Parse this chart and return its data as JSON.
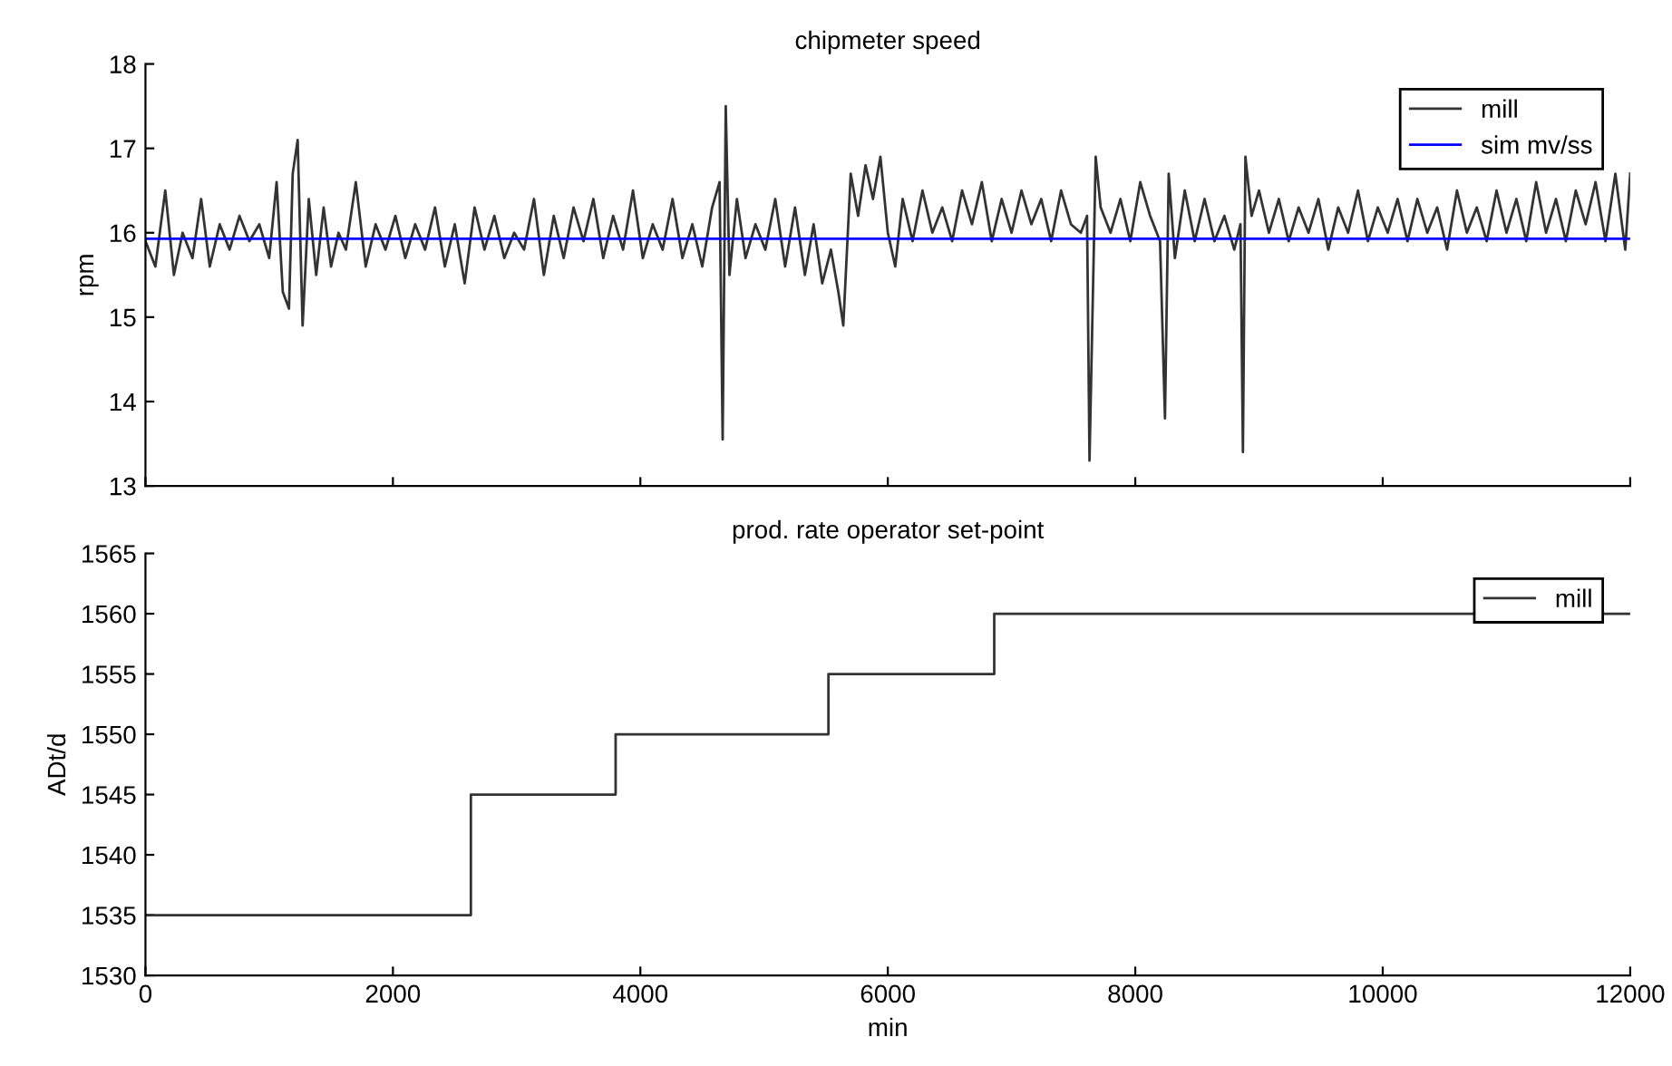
{
  "chart_data": [
    {
      "type": "line",
      "title": "chipmeter speed",
      "ylabel": "rpm",
      "xlim": [
        0,
        12000
      ],
      "ylim": [
        13,
        18
      ],
      "xticks": [
        0,
        2000,
        4000,
        6000,
        8000,
        10000,
        12000
      ],
      "yticks": [
        13,
        14,
        15,
        16,
        17,
        18
      ],
      "tick_labels": "y",
      "legend": "top right",
      "grid": false,
      "series": [
        {
          "name": "mill",
          "color": "#333333",
          "x": [
            0,
            80,
            160,
            230,
            300,
            380,
            450,
            520,
            600,
            680,
            760,
            840,
            920,
            1000,
            1060,
            1110,
            1160,
            1190,
            1230,
            1270,
            1320,
            1380,
            1440,
            1500,
            1560,
            1620,
            1700,
            1780,
            1860,
            1940,
            2020,
            2100,
            2180,
            2260,
            2340,
            2420,
            2500,
            2580,
            2660,
            2740,
            2820,
            2900,
            2980,
            3060,
            3140,
            3220,
            3300,
            3380,
            3460,
            3540,
            3620,
            3700,
            3780,
            3860,
            3940,
            4020,
            4100,
            4180,
            4260,
            4340,
            4420,
            4500,
            4580,
            4640,
            4665,
            4690,
            4720,
            4780,
            4850,
            4930,
            5010,
            5090,
            5170,
            5250,
            5330,
            5400,
            5470,
            5540,
            5600,
            5640,
            5700,
            5760,
            5820,
            5880,
            5940,
            6000,
            6060,
            6120,
            6200,
            6280,
            6360,
            6440,
            6520,
            6600,
            6680,
            6760,
            6840,
            6920,
            7000,
            7080,
            7160,
            7240,
            7320,
            7400,
            7480,
            7560,
            7610,
            7630,
            7680,
            7720,
            7800,
            7880,
            7960,
            8040,
            8120,
            8200,
            8240,
            8270,
            8320,
            8400,
            8480,
            8560,
            8640,
            8720,
            8800,
            8850,
            8870,
            8890,
            8940,
            9000,
            9080,
            9160,
            9240,
            9320,
            9400,
            9480,
            9560,
            9640,
            9720,
            9800,
            9880,
            9960,
            10040,
            10120,
            10200,
            10280,
            10360,
            10440,
            10520,
            10600,
            10680,
            10760,
            10840,
            10920,
            11000,
            11080,
            11160,
            11240,
            11320,
            11400,
            11480,
            11560,
            11640,
            11720,
            11800,
            11880,
            11960,
            12000
          ],
          "values": [
            15.9,
            15.6,
            16.5,
            15.5,
            16.0,
            15.7,
            16.4,
            15.6,
            16.1,
            15.8,
            16.2,
            15.9,
            16.1,
            15.7,
            16.6,
            15.3,
            15.1,
            16.7,
            17.1,
            14.9,
            16.4,
            15.5,
            16.3,
            15.6,
            16.0,
            15.8,
            16.6,
            15.6,
            16.1,
            15.8,
            16.2,
            15.7,
            16.1,
            15.8,
            16.3,
            15.6,
            16.1,
            15.4,
            16.3,
            15.8,
            16.2,
            15.7,
            16.0,
            15.8,
            16.4,
            15.5,
            16.2,
            15.7,
            16.3,
            15.9,
            16.4,
            15.7,
            16.2,
            15.8,
            16.5,
            15.7,
            16.1,
            15.8,
            16.4,
            15.7,
            16.1,
            15.6,
            16.3,
            16.6,
            13.55,
            17.5,
            15.5,
            16.4,
            15.7,
            16.1,
            15.8,
            16.4,
            15.6,
            16.3,
            15.5,
            16.1,
            15.4,
            15.8,
            15.3,
            14.9,
            16.7,
            16.2,
            16.8,
            16.4,
            16.9,
            16.0,
            15.6,
            16.4,
            15.9,
            16.5,
            16.0,
            16.3,
            15.9,
            16.5,
            16.1,
            16.6,
            15.9,
            16.4,
            16.0,
            16.5,
            16.1,
            16.4,
            15.9,
            16.5,
            16.1,
            16.0,
            16.2,
            13.3,
            16.9,
            16.3,
            16.0,
            16.4,
            15.9,
            16.6,
            16.2,
            15.9,
            13.8,
            16.7,
            15.7,
            16.5,
            15.9,
            16.4,
            15.9,
            16.2,
            15.8,
            16.1,
            13.4,
            16.9,
            16.2,
            16.5,
            16.0,
            16.4,
            15.9,
            16.3,
            16.0,
            16.4,
            15.8,
            16.3,
            16.0,
            16.5,
            15.9,
            16.3,
            16.0,
            16.4,
            15.9,
            16.4,
            16.0,
            16.3,
            15.8,
            16.5,
            16.0,
            16.3,
            15.9,
            16.5,
            16.0,
            16.4,
            15.9,
            16.6,
            16.0,
            16.4,
            15.9,
            16.5,
            16.1,
            16.6,
            15.9,
            16.7,
            15.8,
            16.7
          ]
        },
        {
          "name": "sim mv/ss",
          "color": "#0000ff",
          "x": [
            0,
            12000
          ],
          "values": [
            15.93,
            15.93
          ]
        }
      ]
    },
    {
      "type": "step",
      "title": "prod. rate operator set-point",
      "xlabel": "min",
      "ylabel": "ADt/d",
      "xlim": [
        0,
        12000
      ],
      "ylim": [
        1530,
        1565
      ],
      "xticks": [
        0,
        2000,
        4000,
        6000,
        8000,
        10000,
        12000
      ],
      "yticks": [
        1530,
        1535,
        1540,
        1545,
        1550,
        1555,
        1560,
        1565
      ],
      "legend": "top right",
      "grid": false,
      "series": [
        {
          "name": "mill",
          "color": "#333333",
          "x": [
            0,
            2630,
            3800,
            5520,
            6860,
            12000
          ],
          "values": [
            1535,
            1545,
            1550,
            1555,
            1560,
            1560
          ]
        }
      ]
    }
  ]
}
